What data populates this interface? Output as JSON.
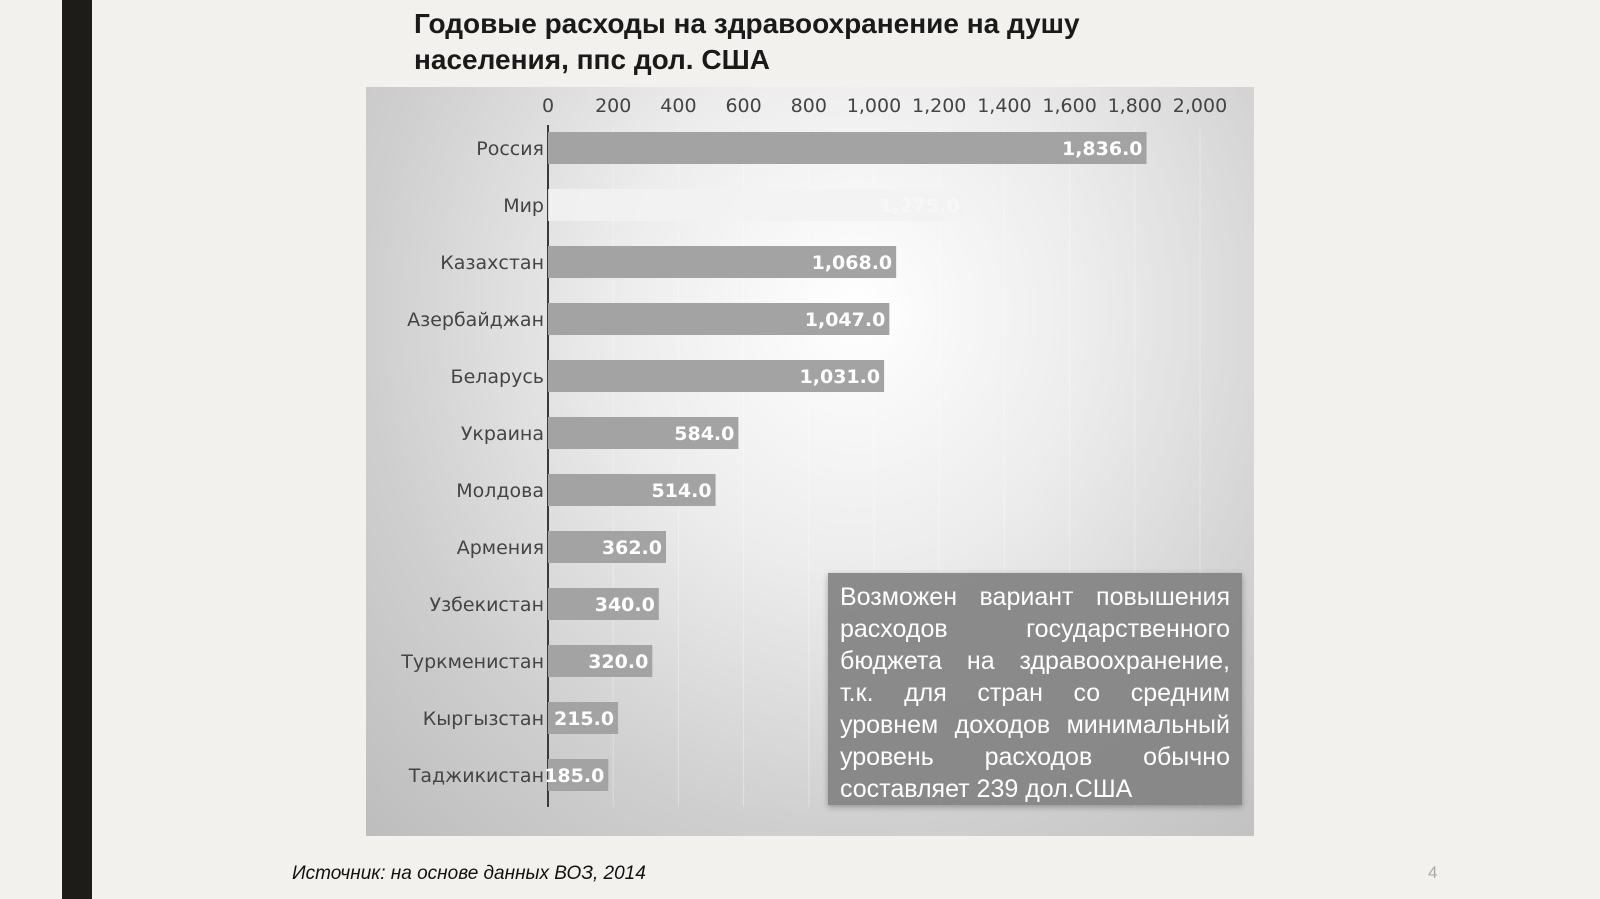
{
  "slide": {
    "title": "Годовые расходы на здравоохранение на душу населения, ппс дол. США",
    "source": "Источник: на основе данных ВОЗ, 2014",
    "page_number": "4",
    "note": "Возможен вариант повышения расходов государственного бюджета на здравоохранение, т.к. для стран со средним уровнем доходов минимальный уровень расходов обычно составляет 239 дол.США"
  },
  "colors": {
    "bar": "#a3a3a3",
    "world_bar": "#f2f2f2",
    "axis": "#3a3a3a"
  },
  "chart_data": {
    "type": "bar",
    "orientation": "horizontal",
    "title": "Годовые расходы на здравоохранение на душу населения, ппс дол. США",
    "xlabel": "",
    "ylabel": "",
    "xlim": [
      0,
      2000
    ],
    "ticks": [
      "0",
      "200",
      "400",
      "600",
      "800",
      "1,000",
      "1,200",
      "1,400",
      "1,600",
      "1,800",
      "2,000"
    ],
    "tick_values": [
      0,
      200,
      400,
      600,
      800,
      1000,
      1200,
      1400,
      1600,
      1800,
      2000
    ],
    "grid": true,
    "legend": "none",
    "categories": [
      "Россия",
      "Мир",
      "Казахстан",
      "Азербайджан",
      "Беларусь",
      "Украина",
      "Молдова",
      "Армения",
      "Узбекистан",
      "Туркменистан",
      "Кыргызстан",
      "Таджикистан"
    ],
    "values": [
      1836.0,
      1275.0,
      1068.0,
      1047.0,
      1031.0,
      584.0,
      514.0,
      362.0,
      340.0,
      320.0,
      215.0,
      185.0
    ],
    "value_labels": [
      "1,836.0",
      "1,275.0",
      "1,068.0",
      "1,047.0",
      "1,031.0",
      "584.0",
      "514.0",
      "362.0",
      "340.0",
      "320.0",
      "215.0",
      "185.0"
    ]
  }
}
